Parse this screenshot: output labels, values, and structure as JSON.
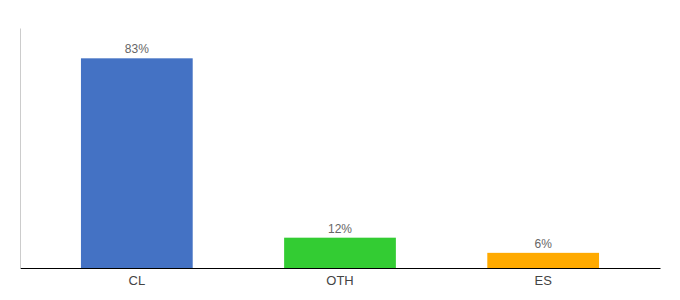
{
  "chart_data": {
    "type": "bar",
    "categories": [
      "CL",
      "OTH",
      "ES"
    ],
    "values": [
      83,
      12,
      6
    ],
    "value_labels": [
      "83%",
      "12%",
      "6%"
    ],
    "colors": [
      "#4472c4",
      "#33cc33",
      "#ffaa00"
    ],
    "ylim": [
      0,
      95
    ],
    "data_labels": true,
    "tick_labels": "x",
    "grid": false
  }
}
